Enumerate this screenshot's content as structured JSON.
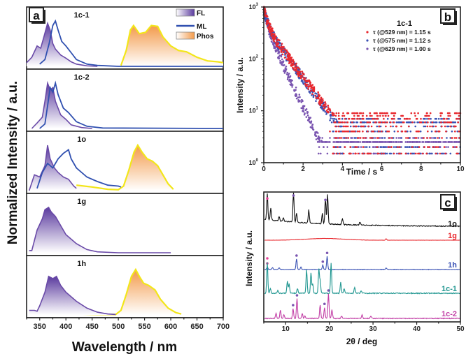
{
  "chart_data": [
    {
      "panel": "a",
      "type": "area",
      "xlabel": "Wavelength / nm",
      "ylabel": "Normalized Intensity / a.u.",
      "xlim": [
        325,
        700
      ],
      "xticks": [
        350,
        400,
        450,
        500,
        550,
        600,
        650,
        700
      ],
      "legend": {
        "placement": "top-right",
        "entries": [
          {
            "name": "FL",
            "color": "#6a4aa8",
            "style": "filled"
          },
          {
            "name": "ML",
            "color": "#3050b0",
            "style": "line"
          },
          {
            "name": "Phos",
            "color": "#f7a35c",
            "style": "filled"
          }
        ]
      },
      "subpanels": [
        {
          "label": "1c-1",
          "FL": {
            "x": [
              325,
              335,
              345,
              352,
              358,
              365,
              370,
              375,
              380,
              390,
              400,
              410,
              420,
              440,
              460
            ],
            "y": [
              0.08,
              0.2,
              0.45,
              0.4,
              0.65,
              0.95,
              0.8,
              0.5,
              0.38,
              0.25,
              0.18,
              0.1,
              0.05,
              0.01,
              0
            ]
          },
          "ML": {
            "x": [
              350,
              360,
              368,
              375,
              380,
              385,
              392,
              400,
              410,
              420,
              440,
              460,
              500,
              700
            ],
            "y": [
              0.05,
              0.15,
              0.5,
              0.9,
              1.0,
              0.8,
              0.55,
              0.45,
              0.3,
              0.15,
              0.05,
              0.02,
              0,
              0
            ]
          },
          "Phos": {
            "x": [
              505,
              515,
              523,
              529,
              540,
              552,
              563,
              575,
              585,
              600,
              615,
              630,
              650,
              670,
              690,
              700
            ],
            "y": [
              0.02,
              0.35,
              0.8,
              0.9,
              0.72,
              0.75,
              0.9,
              0.88,
              0.65,
              0.45,
              0.35,
              0.32,
              0.2,
              0.12,
              0.1,
              0.08
            ]
          }
        },
        {
          "label": "1c-2",
          "FL": {
            "x": [
              335,
              345,
              355,
              360,
              365,
              370,
              375,
              380,
              390,
              400,
              410,
              430,
              450
            ],
            "y": [
              0,
              0.12,
              0.25,
              0.6,
              1.0,
              0.85,
              0.9,
              0.6,
              0.3,
              0.2,
              0.08,
              0.02,
              0
            ]
          },
          "ML": {
            "x": [
              350,
              360,
              365,
              370,
              375,
              380,
              385,
              395,
              405,
              420,
              440,
              470,
              700
            ],
            "y": [
              0,
              0.1,
              0.5,
              0.9,
              0.8,
              1.0,
              0.75,
              0.45,
              0.35,
              0.15,
              0.05,
              0.01,
              0
            ]
          },
          "Phos": null
        },
        {
          "label": "1o",
          "FL": {
            "x": [
              330,
              340,
              350,
              360,
              365,
              370,
              378,
              385,
              395,
              405,
              415,
              420
            ],
            "y": [
              0,
              0.35,
              0.3,
              0.55,
              1.0,
              0.7,
              0.5,
              0.4,
              0.3,
              0.25,
              0.1,
              0.05
            ]
          },
          "ML": {
            "x": [
              345,
              355,
              365,
              375,
              385,
              395,
              405,
              410,
              420,
              440,
              460,
              480,
              500,
              505
            ],
            "y": [
              0.05,
              0.4,
              0.6,
              0.5,
              0.7,
              0.82,
              0.9,
              0.7,
              0.5,
              0.3,
              0.2,
              0.12,
              0.1,
              0.08
            ]
          },
          "Phos": {
            "x": [
              420,
              450,
              480,
              500,
              510,
              520,
              530,
              537,
              545,
              555,
              565,
              575,
              585,
              595,
              605
            ],
            "y": [
              0.12,
              0.08,
              0.03,
              0.02,
              0.1,
              0.45,
              0.85,
              1.0,
              0.85,
              0.7,
              0.65,
              0.55,
              0.35,
              0.15,
              0.03
            ]
          }
        },
        {
          "label": "1g",
          "FL": {
            "x": [
              330,
              335,
              345,
              355,
              360,
              367,
              372,
              380,
              390,
              400,
              420,
              440,
              460,
              500,
              600
            ],
            "y": [
              0.05,
              0.05,
              0.5,
              0.75,
              0.95,
              1.0,
              0.9,
              0.8,
              0.6,
              0.4,
              0.2,
              0.07,
              0.02,
              0,
              0
            ]
          },
          "ML": null,
          "Phos": null
        },
        {
          "label": "1h",
          "FL": {
            "x": [
              330,
              340,
              345,
              350,
              360,
              367,
              375,
              382,
              390,
              400,
              420,
              440,
              460,
              480,
              495
            ],
            "y": [
              0.1,
              0.1,
              0.08,
              0.2,
              0.5,
              0.85,
              0.8,
              0.85,
              0.65,
              0.5,
              0.3,
              0.15,
              0.06,
              0.02,
              0.01
            ]
          },
          "ML": null,
          "Phos": {
            "x": [
              420,
              460,
              495,
              505,
              515,
              525,
              533,
              540,
              548,
              558,
              570,
              580,
              595,
              610,
              620
            ],
            "y": [
              0.02,
              0.01,
              0.01,
              0.1,
              0.45,
              0.85,
              1.0,
              0.85,
              0.7,
              0.65,
              0.55,
              0.35,
              0.15,
              0.05,
              0.02
            ]
          }
        }
      ]
    },
    {
      "panel": "b",
      "type": "scatter",
      "title": "1c-1",
      "xlabel": "Time / s",
      "ylabel": "Intensity / a.u.",
      "xlim": [
        0,
        10
      ],
      "ylim": [
        1,
        1000
      ],
      "yscale": "log",
      "xticks": [
        0,
        2,
        4,
        6,
        8,
        10
      ],
      "yticks": [
        "10^0",
        "10^1",
        "10^2",
        "10^3"
      ],
      "legend": {
        "placement": "top-right"
      },
      "series": [
        {
          "name": "τ (@529 nm) = 1.15 s",
          "color": "#e8282e",
          "lifetime_s": 1.15,
          "floor": 8
        },
        {
          "name": "τ (@575 nm) = 1.12 s",
          "color": "#3a52b4",
          "lifetime_s": 1.12,
          "floor": 6
        },
        {
          "name": "τ (@629 nm) = 1.00 s",
          "color": "#7a55b0",
          "lifetime_s": 1.0,
          "floor": 2.5
        }
      ]
    },
    {
      "panel": "c",
      "type": "line",
      "xlabel": "2θ / deg",
      "ylabel": "Intensity / a.u.",
      "xlim": [
        5,
        50
      ],
      "xticks": [
        10,
        20,
        30,
        40,
        50
      ],
      "series": [
        {
          "name": "1o",
          "color": "#111111",
          "peaks": [
            [
              5.8,
              0.9
            ],
            [
              6.6,
              0.4
            ],
            [
              8.5,
              0.15
            ],
            [
              9.5,
              0.12
            ],
            [
              11.8,
              1.0
            ],
            [
              12.5,
              0.3
            ],
            [
              15.3,
              0.45
            ],
            [
              18.4,
              0.35
            ],
            [
              19.1,
              0.85
            ],
            [
              19.6,
              1.0
            ],
            [
              23,
              0.2
            ],
            [
              27,
              0.1
            ]
          ],
          "markers": [
            {
              "x": 5.8,
              "color": "#e8459a"
            },
            {
              "x": 11.8,
              "color": "#7a55b0"
            },
            {
              "x": 19.1,
              "color": "#7a55b0"
            }
          ]
        },
        {
          "name": "1g",
          "color": "#e8282e",
          "peaks": [
            [
              33,
              0.2
            ]
          ],
          "hump": true,
          "markers": []
        },
        {
          "name": "1h",
          "color": "#3a52b4",
          "peaks": [
            [
              5.8,
              0.15
            ],
            [
              7,
              0.12
            ],
            [
              8.5,
              0.1
            ],
            [
              12.5,
              0.6
            ],
            [
              13.5,
              0.15
            ],
            [
              18.5,
              0.25
            ],
            [
              19.5,
              0.75
            ],
            [
              33,
              0.1
            ]
          ],
          "markers": [
            {
              "x": 5.8,
              "color": "#e8459a"
            },
            {
              "x": 12.5,
              "color": "#7a55b0"
            },
            {
              "x": 18.5,
              "color": "#7a55b0"
            },
            {
              "x": 19.5,
              "color": "#7a55b0"
            }
          ]
        },
        {
          "name": "1c-1",
          "color": "#1f9690",
          "peaks": [
            [
              5.8,
              1.0
            ],
            [
              6.5,
              0.15
            ],
            [
              8.2,
              0.1
            ],
            [
              10.4,
              0.4
            ],
            [
              10.8,
              0.3
            ],
            [
              12.7,
              0.15
            ],
            [
              14.8,
              0.75
            ],
            [
              15.8,
              0.65
            ],
            [
              16.2,
              0.3
            ],
            [
              17.6,
              0.75
            ],
            [
              17.9,
              0.4
            ],
            [
              20.4,
              0.95
            ],
            [
              22.6,
              0.35
            ],
            [
              23.4,
              0.15
            ],
            [
              25.8,
              0.2
            ],
            [
              27.3,
              0.08
            ]
          ],
          "markers": [
            {
              "x": 5.8,
              "color": "#e8459a"
            }
          ]
        },
        {
          "name": "1c-2",
          "color": "#c23fa6",
          "peaks": [
            [
              7.8,
              0.2
            ],
            [
              8.8,
              0.35
            ],
            [
              9.6,
              0.15
            ],
            [
              11.7,
              0.4
            ],
            [
              12.6,
              0.8
            ],
            [
              13.8,
              0.2
            ],
            [
              14.4,
              0.1
            ],
            [
              17.9,
              0.55
            ],
            [
              18.9,
              0.45
            ],
            [
              19.8,
              1.0
            ],
            [
              20.6,
              0.35
            ],
            [
              22.8,
              0.1
            ],
            [
              27.5,
              0.15
            ],
            [
              29.5,
              0.1
            ]
          ],
          "markers": [
            {
              "x": 11.7,
              "color": "#7a55b0"
            },
            {
              "x": 12.6,
              "color": "#7a55b0"
            },
            {
              "x": 18.9,
              "color": "#7a55b0"
            },
            {
              "x": 19.8,
              "color": "#7a55b0"
            }
          ]
        }
      ]
    }
  ],
  "panel_labels": {
    "a": "a",
    "b": "b",
    "c": "c"
  }
}
